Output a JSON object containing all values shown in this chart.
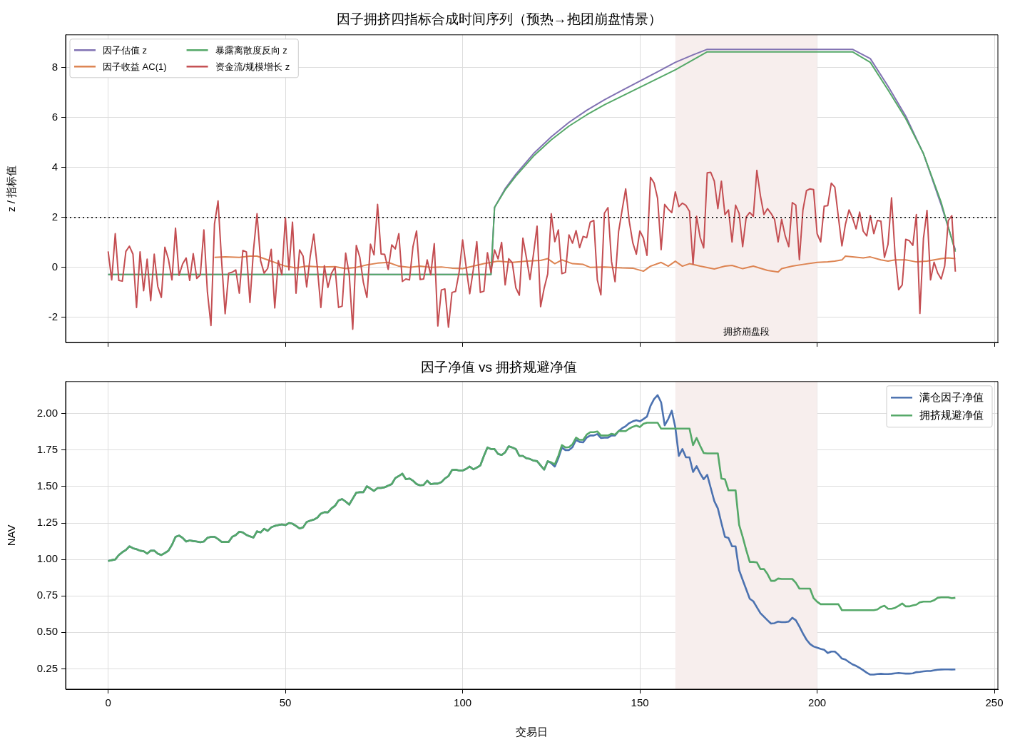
{
  "chart_data": [
    {
      "type": "line",
      "title": "因子拥挤四指标合成时间序列（预热→抱团崩盘情景）",
      "ylabel": "z / 指标值",
      "x": [
        0,
        1,
        2,
        3,
        4,
        5,
        6,
        7,
        8,
        9,
        10,
        11,
        12,
        13,
        14,
        15,
        16,
        17,
        18,
        19,
        20,
        21,
        22,
        23,
        24,
        25,
        26,
        27,
        28,
        29,
        30,
        31,
        32,
        33,
        34,
        35,
        36,
        37,
        38,
        39,
        40,
        41,
        42,
        43,
        44,
        45,
        46,
        47,
        48,
        49,
        50,
        51,
        52,
        53,
        54,
        55,
        56,
        57,
        58,
        59,
        60,
        61,
        62,
        63,
        64,
        65,
        66,
        67,
        68,
        69,
        70,
        71,
        72,
        73,
        74,
        75,
        76,
        77,
        78,
        79,
        80,
        81,
        82,
        83,
        84,
        85,
        86,
        87,
        88,
        89,
        90,
        91,
        92,
        93,
        94,
        95,
        96,
        97,
        98,
        99,
        100,
        101,
        102,
        103,
        104,
        105,
        106,
        107,
        108,
        109,
        110,
        111,
        112,
        113,
        114,
        115,
        116,
        117,
        118,
        119,
        120,
        121,
        122,
        123,
        124,
        125,
        126,
        127,
        128,
        129,
        130,
        131,
        132,
        133,
        134,
        135,
        136,
        137,
        138,
        139,
        140,
        141,
        142,
        143,
        144,
        145,
        146,
        147,
        148,
        149,
        150,
        151,
        152,
        153,
        154,
        155,
        156,
        157,
        158,
        159,
        160,
        161,
        162,
        163,
        164,
        165,
        166,
        167,
        168,
        169,
        170,
        171,
        172,
        173,
        174,
        175,
        176,
        177,
        178,
        179,
        180,
        181,
        182,
        183,
        184,
        185,
        186,
        187,
        188,
        189,
        190,
        191,
        192,
        193,
        194,
        195,
        196,
        197,
        198,
        199,
        200,
        201,
        202,
        203,
        204,
        205,
        206,
        207,
        208,
        209,
        210,
        211,
        212,
        213,
        214,
        215,
        216,
        217,
        218,
        219,
        220,
        221,
        222,
        223,
        224,
        225,
        226,
        227,
        228,
        229,
        230,
        231,
        232,
        233,
        234,
        235,
        236,
        237,
        238,
        239
      ],
      "series": [
        {
          "name": "因子估值 z",
          "color": "#8172b3",
          "x": [
            0,
            108,
            109,
            112,
            115,
            120,
            125,
            130,
            135,
            140,
            145,
            150,
            155,
            160,
            165,
            169,
            210,
            215,
            220,
            225,
            230,
            235,
            239
          ],
          "values": [
            -0.28,
            -0.28,
            2.4,
            3.15,
            3.72,
            4.55,
            5.22,
            5.8,
            6.28,
            6.7,
            7.08,
            7.45,
            7.82,
            8.2,
            8.5,
            8.72,
            8.72,
            8.35,
            7.25,
            6.05,
            4.55,
            2.5,
            0.7
          ]
        },
        {
          "name": "因子收益 AC(1)",
          "color": "#dd8452",
          "x": [
            30,
            33,
            37,
            40,
            42,
            45,
            48,
            50,
            53,
            56,
            60,
            64,
            67,
            70,
            73,
            76,
            79,
            82,
            85,
            88,
            91,
            94,
            97,
            100,
            103,
            106,
            110,
            114,
            118,
            122,
            124,
            126,
            128,
            131,
            134,
            136,
            140,
            145,
            148,
            151,
            153,
            156,
            158,
            160,
            162,
            164,
            167,
            171,
            174,
            176,
            179,
            182,
            186,
            189,
            190,
            193,
            196,
            200,
            203,
            205,
            207,
            208,
            210,
            213,
            215,
            218,
            220,
            222,
            225,
            228,
            231,
            235,
            237,
            239
          ],
          "values": [
            0.4,
            0.42,
            0.4,
            0.45,
            0.45,
            0.3,
            0.15,
            0.05,
            -0.02,
            0.05,
            0.02,
            0.03,
            -0.05,
            0.0,
            0.1,
            0.17,
            0.2,
            0.05,
            0.0,
            0.05,
            0.0,
            0.02,
            -0.03,
            -0.05,
            0.05,
            0.15,
            0.25,
            0.2,
            0.25,
            0.28,
            0.35,
            0.15,
            0.3,
            0.15,
            0.12,
            0.0,
            0.02,
            -0.02,
            -0.03,
            -0.15,
            0.05,
            0.2,
            0.05,
            0.25,
            0.05,
            0.15,
            0.05,
            -0.06,
            0.05,
            0.08,
            -0.05,
            0.05,
            -0.12,
            -0.18,
            -0.05,
            0.05,
            0.12,
            0.2,
            0.22,
            0.25,
            0.3,
            0.45,
            0.42,
            0.38,
            0.42,
            0.3,
            0.25,
            0.3,
            0.3,
            0.22,
            0.25,
            0.35,
            0.38,
            0.35
          ]
        },
        {
          "name": "暴露离散度反向 z",
          "color": "#55a868",
          "x": [
            0,
            108,
            109,
            112,
            115,
            120,
            125,
            130,
            135,
            140,
            145,
            150,
            155,
            160,
            165,
            169,
            210,
            215,
            220,
            225,
            230,
            235,
            239
          ],
          "values": [
            -0.28,
            -0.28,
            2.4,
            3.1,
            3.65,
            4.45,
            5.1,
            5.65,
            6.1,
            6.5,
            6.85,
            7.2,
            7.55,
            7.9,
            8.3,
            8.62,
            8.62,
            8.2,
            7.1,
            5.95,
            4.55,
            2.6,
            0.63
          ]
        },
        {
          "name": "资金流/规模增长 z",
          "color": "#c44e52",
          "values": [
            0.64,
            -0.5,
            1.35,
            -0.52,
            -0.55,
            0.64,
            0.85,
            0.53,
            -1.6,
            0.62,
            -0.93,
            0.33,
            -1.33,
            0.53,
            -0.76,
            -1.2,
            0.81,
            0.33,
            -0.5,
            1.57,
            -0.32,
            0.14,
            0.38,
            -0.52,
            0.55,
            -0.44,
            -0.3,
            1.5,
            -0.98,
            -2.32,
            1.74,
            2.66,
            0.27,
            -1.85,
            -0.23,
            -0.19,
            -0.1,
            -1.03,
            0.68,
            0.62,
            -1.4,
            0.7,
            2.15,
            0.27,
            -0.23,
            -0.04,
            0.72,
            -1.62,
            0.27,
            -0.3,
            1.98,
            -0.1,
            1.81,
            -1.03,
            0.7,
            0.45,
            -0.78,
            0.44,
            1.33,
            0.02,
            -1.6,
            0.07,
            -0.8,
            -0.23,
            0.02,
            -1.6,
            -1.55,
            0.57,
            -0.27,
            -2.47,
            0.88,
            0.4,
            -0.6,
            -1.2,
            0.93,
            0.5,
            2.52,
            0.54,
            0.52,
            -0.08,
            0.9,
            0.74,
            1.35,
            -0.56,
            -0.46,
            -0.5,
            0.84,
            1.46,
            -0.48,
            -0.46,
            0.3,
            -0.3,
            0.95,
            -2.34,
            -0.9,
            -0.86,
            -2.39,
            -1.0,
            -0.96,
            -0.2,
            1.1,
            0.0,
            -1.05,
            -0.1,
            1.03,
            -1.0,
            -0.95,
            0.59,
            -0.2,
            0.7,
            0.34,
            1.0,
            -0.7,
            0.35,
            0.19,
            -0.81,
            -1.11,
            1.17,
            0.38,
            -0.48,
            0.55,
            1.65,
            -1.57,
            -0.83,
            -0.26,
            2.15,
            1.03,
            1.5,
            -0.25,
            -0.2,
            1.3,
            0.97,
            1.47,
            0.79,
            1.24,
            1.19,
            1.81,
            1.88,
            -0.5,
            -1.1,
            2.17,
            2.39,
            0.24,
            -0.57,
            1.43,
            2.3,
            3.14,
            1.85,
            0.99,
            0.53,
            1.46,
            1.17,
            0.48,
            3.6,
            3.38,
            2.76,
            0.71,
            2.52,
            2.33,
            2.19,
            3.02,
            2.43,
            2.57,
            2.48,
            2.24,
            0.14,
            2.04,
            1.2,
            0.78,
            3.78,
            3.8,
            3.45,
            2.35,
            3.45,
            2.11,
            2.3,
            1.02,
            2.49,
            2.16,
            0.83,
            2.02,
            2.2,
            2.04,
            3.88,
            2.87,
            2.11,
            2.35,
            2.16,
            1.92,
            1.02,
            1.92,
            1.26,
            0.83,
            2.59,
            2.49,
            0.31,
            2.3,
            3.07,
            3.14,
            3.11,
            1.35,
            1.02,
            2.45,
            2.47,
            3.37,
            3.21,
            2.02,
            0.86,
            1.73,
            2.3,
            1.97,
            1.54,
            2.21,
            1.45,
            1.26,
            2.07,
            1.35,
            1.88,
            1.85,
            0.4,
            0.92,
            2.78,
            0.5,
            -0.89,
            -0.7,
            1.12,
            1.07,
            0.88,
            2.11,
            -1.84,
            1.16,
            2.28,
            -0.5,
            0.21,
            -0.22,
            -0.46,
            0.06,
            1.87,
            2.07,
            -0.17
          ]
        }
      ],
      "xlim": [
        -12,
        251
      ],
      "ylim": [
        -3.0,
        9.3
      ],
      "xticks": [
        0,
        50,
        100,
        150,
        200,
        250
      ],
      "yticks": [
        -2,
        0,
        2,
        4,
        6,
        8
      ],
      "tick_labels": "y",
      "grid": true,
      "legend": "top left",
      "marker": "none",
      "ref_lines": [
        {
          "axis": "y",
          "value": 2,
          "line_style": "dotted",
          "color": "#000000"
        }
      ],
      "bands": [
        {
          "axis": "x",
          "from": 160,
          "to": 200,
          "label": "拥挤崩盘段",
          "color": "#f7eeed"
        }
      ]
    },
    {
      "type": "line",
      "title": "因子净值 vs 拥挤规避净值",
      "xlabel": "交易日",
      "ylabel": "NAV",
      "x": [
        0,
        1,
        2,
        3,
        4,
        5,
        6,
        7,
        8,
        9,
        10,
        11,
        12,
        13,
        14,
        15,
        16,
        17,
        18,
        19,
        20,
        21,
        22,
        23,
        24,
        25,
        26,
        27,
        28,
        29,
        30,
        31,
        32,
        33,
        34,
        35,
        36,
        37,
        38,
        39,
        40,
        41,
        42,
        43,
        44,
        45,
        46,
        47,
        48,
        49,
        50,
        51,
        52,
        53,
        54,
        55,
        56,
        57,
        58,
        59,
        60,
        61,
        62,
        63,
        64,
        65,
        66,
        67,
        68,
        69,
        70,
        71,
        72,
        73,
        74,
        75,
        76,
        77,
        78,
        79,
        80,
        81,
        82,
        83,
        84,
        85,
        86,
        87,
        88,
        89,
        90,
        91,
        92,
        93,
        94,
        95,
        96,
        97,
        98,
        99,
        100,
        101,
        102,
        103,
        104,
        105,
        106,
        107,
        108,
        109,
        110,
        111,
        112,
        113,
        114,
        115,
        116,
        117,
        118,
        119,
        120,
        121,
        122,
        123,
        124,
        125,
        126,
        127,
        128,
        129,
        130,
        131,
        132,
        133,
        134,
        135,
        136,
        137,
        138,
        139,
        140,
        141,
        142,
        143,
        144,
        145,
        146,
        147,
        148,
        149,
        150,
        151,
        152,
        153,
        154,
        155,
        156,
        157,
        158,
        159,
        160,
        161,
        162,
        163,
        164,
        165,
        166,
        167,
        168,
        169,
        170,
        171,
        172,
        173,
        174,
        175,
        176,
        177,
        178,
        179,
        180,
        181,
        182,
        183,
        184,
        185,
        186,
        187,
        188,
        189,
        190,
        191,
        192,
        193,
        194,
        195,
        196,
        197,
        198,
        199,
        200,
        201,
        202,
        203,
        204,
        205,
        206,
        207,
        208,
        209,
        210,
        211,
        212,
        213,
        214,
        215,
        216,
        217,
        218,
        219,
        220,
        221,
        222,
        223,
        224,
        225,
        226,
        227,
        228,
        229,
        230,
        231,
        232,
        233,
        234,
        235,
        236,
        237,
        238,
        239
      ],
      "series": [
        {
          "name": "满仓因子净值",
          "color": "#4c72b0",
          "values": [
            0.99,
            0.995,
            1.0,
            1.03,
            1.05,
            1.065,
            1.09,
            1.077,
            1.07,
            1.06,
            1.057,
            1.04,
            1.06,
            1.06,
            1.04,
            1.03,
            1.044,
            1.06,
            1.1,
            1.155,
            1.164,
            1.148,
            1.123,
            1.13,
            1.126,
            1.123,
            1.118,
            1.123,
            1.148,
            1.155,
            1.155,
            1.14,
            1.12,
            1.12,
            1.12,
            1.155,
            1.167,
            1.19,
            1.185,
            1.168,
            1.158,
            1.15,
            1.193,
            1.185,
            1.21,
            1.196,
            1.22,
            1.23,
            1.235,
            1.24,
            1.235,
            1.25,
            1.245,
            1.23,
            1.212,
            1.22,
            1.257,
            1.266,
            1.273,
            1.286,
            1.314,
            1.324,
            1.323,
            1.35,
            1.368,
            1.405,
            1.414,
            1.397,
            1.376,
            1.417,
            1.458,
            1.461,
            1.461,
            1.502,
            1.486,
            1.47,
            1.49,
            1.49,
            1.495,
            1.506,
            1.517,
            1.558,
            1.572,
            1.588,
            1.55,
            1.555,
            1.54,
            1.517,
            1.508,
            1.511,
            1.54,
            1.517,
            1.52,
            1.52,
            1.53,
            1.555,
            1.572,
            1.613,
            1.616,
            1.61,
            1.61,
            1.621,
            1.637,
            1.618,
            1.63,
            1.645,
            1.71,
            1.768,
            1.757,
            1.757,
            1.724,
            1.716,
            1.735,
            1.776,
            1.768,
            1.757,
            1.71,
            1.71,
            1.694,
            1.689,
            1.678,
            1.674,
            1.645,
            1.616,
            1.674,
            1.66,
            1.637,
            1.694,
            1.768,
            1.75,
            1.75,
            1.77,
            1.82,
            1.806,
            1.803,
            1.836,
            1.85,
            1.85,
            1.86,
            1.833,
            1.835,
            1.835,
            1.85,
            1.85,
            1.88,
            1.9,
            1.914,
            1.935,
            1.947,
            1.955,
            1.947,
            1.963,
            1.98,
            2.053,
            2.1,
            2.127,
            2.077,
            1.92,
            1.963,
            2.02,
            1.906,
            1.71,
            1.757,
            1.7,
            1.7,
            1.6,
            1.64,
            1.59,
            1.55,
            1.58,
            1.49,
            1.4,
            1.35,
            1.25,
            1.155,
            1.147,
            1.09,
            1.09,
            0.926,
            0.86,
            0.795,
            0.73,
            0.713,
            0.672,
            0.632,
            0.607,
            0.583,
            0.56,
            0.563,
            0.574,
            0.57,
            0.57,
            0.574,
            0.6,
            0.583,
            0.54,
            0.492,
            0.45,
            0.42,
            0.403,
            0.395,
            0.387,
            0.38,
            0.358,
            0.368,
            0.368,
            0.347,
            0.32,
            0.313,
            0.296,
            0.28,
            0.27,
            0.256,
            0.24,
            0.223,
            0.21,
            0.21,
            0.214,
            0.216,
            0.214,
            0.214,
            0.216,
            0.219,
            0.221,
            0.219,
            0.217,
            0.217,
            0.219,
            0.227,
            0.229,
            0.232,
            0.235,
            0.235,
            0.24,
            0.243,
            0.245,
            0.246,
            0.246,
            0.245,
            0.246
          ]
        },
        {
          "name": "拥挤规避净值",
          "color": "#55a868",
          "values": [
            0.99,
            0.995,
            1.0,
            1.03,
            1.05,
            1.065,
            1.09,
            1.077,
            1.07,
            1.06,
            1.057,
            1.04,
            1.06,
            1.06,
            1.04,
            1.03,
            1.044,
            1.06,
            1.1,
            1.155,
            1.164,
            1.148,
            1.123,
            1.13,
            1.126,
            1.123,
            1.118,
            1.123,
            1.148,
            1.155,
            1.155,
            1.14,
            1.12,
            1.12,
            1.12,
            1.155,
            1.167,
            1.19,
            1.185,
            1.168,
            1.158,
            1.15,
            1.193,
            1.185,
            1.21,
            1.196,
            1.22,
            1.23,
            1.235,
            1.24,
            1.235,
            1.25,
            1.245,
            1.23,
            1.212,
            1.22,
            1.257,
            1.266,
            1.273,
            1.286,
            1.314,
            1.324,
            1.323,
            1.35,
            1.368,
            1.405,
            1.414,
            1.397,
            1.376,
            1.417,
            1.458,
            1.461,
            1.461,
            1.502,
            1.486,
            1.47,
            1.49,
            1.49,
            1.495,
            1.506,
            1.517,
            1.558,
            1.572,
            1.588,
            1.55,
            1.555,
            1.54,
            1.517,
            1.508,
            1.511,
            1.54,
            1.517,
            1.52,
            1.52,
            1.53,
            1.555,
            1.572,
            1.613,
            1.616,
            1.61,
            1.61,
            1.621,
            1.637,
            1.618,
            1.63,
            1.645,
            1.71,
            1.768,
            1.757,
            1.757,
            1.724,
            1.716,
            1.735,
            1.776,
            1.768,
            1.757,
            1.71,
            1.71,
            1.694,
            1.689,
            1.678,
            1.674,
            1.645,
            1.616,
            1.674,
            1.666,
            1.652,
            1.71,
            1.784,
            1.768,
            1.77,
            1.79,
            1.836,
            1.82,
            1.82,
            1.856,
            1.873,
            1.873,
            1.878,
            1.85,
            1.85,
            1.85,
            1.862,
            1.856,
            1.88,
            1.88,
            1.88,
            1.897,
            1.91,
            1.918,
            1.908,
            1.93,
            1.938,
            1.938,
            1.938,
            1.938,
            1.897,
            1.897,
            1.897,
            1.897,
            1.897,
            1.897,
            1.897,
            1.897,
            1.897,
            1.784,
            1.833,
            1.78,
            1.73,
            1.727,
            1.727,
            1.727,
            1.727,
            1.555,
            1.55,
            1.474,
            1.474,
            1.474,
            1.237,
            1.155,
            1.065,
            0.983,
            0.983,
            0.98,
            0.934,
            0.934,
            0.9,
            0.853,
            0.853,
            0.869,
            0.866,
            0.866,
            0.866,
            0.866,
            0.84,
            0.8,
            0.8,
            0.8,
            0.8,
            0.735,
            0.71,
            0.693,
            0.693,
            0.693,
            0.693,
            0.693,
            0.693,
            0.652,
            0.652,
            0.652,
            0.652,
            0.652,
            0.652,
            0.652,
            0.652,
            0.652,
            0.652,
            0.657,
            0.674,
            0.682,
            0.662,
            0.662,
            0.668,
            0.682,
            0.698,
            0.678,
            0.678,
            0.685,
            0.69,
            0.706,
            0.711,
            0.711,
            0.711,
            0.72,
            0.737,
            0.74,
            0.74,
            0.74,
            0.734,
            0.737
          ]
        }
      ],
      "xlim": [
        -12,
        251
      ],
      "ylim": [
        0.11,
        2.22
      ],
      "xticks": [
        0,
        50,
        100,
        150,
        200,
        250
      ],
      "yticks": [
        0.25,
        {
          "value": 0.5,
          "label": "0.50"
        },
        0.75,
        {
          "value": 1,
          "label": "1.00"
        },
        1.25,
        {
          "value": 1.5,
          "label": "1.50"
        },
        1.75,
        {
          "value": 2,
          "label": "2.00"
        }
      ],
      "grid": true,
      "legend": "top right",
      "marker": "none",
      "bands": [
        {
          "axis": "x",
          "from": 160,
          "to": 200,
          "color": "#f7eeed"
        }
      ]
    }
  ]
}
